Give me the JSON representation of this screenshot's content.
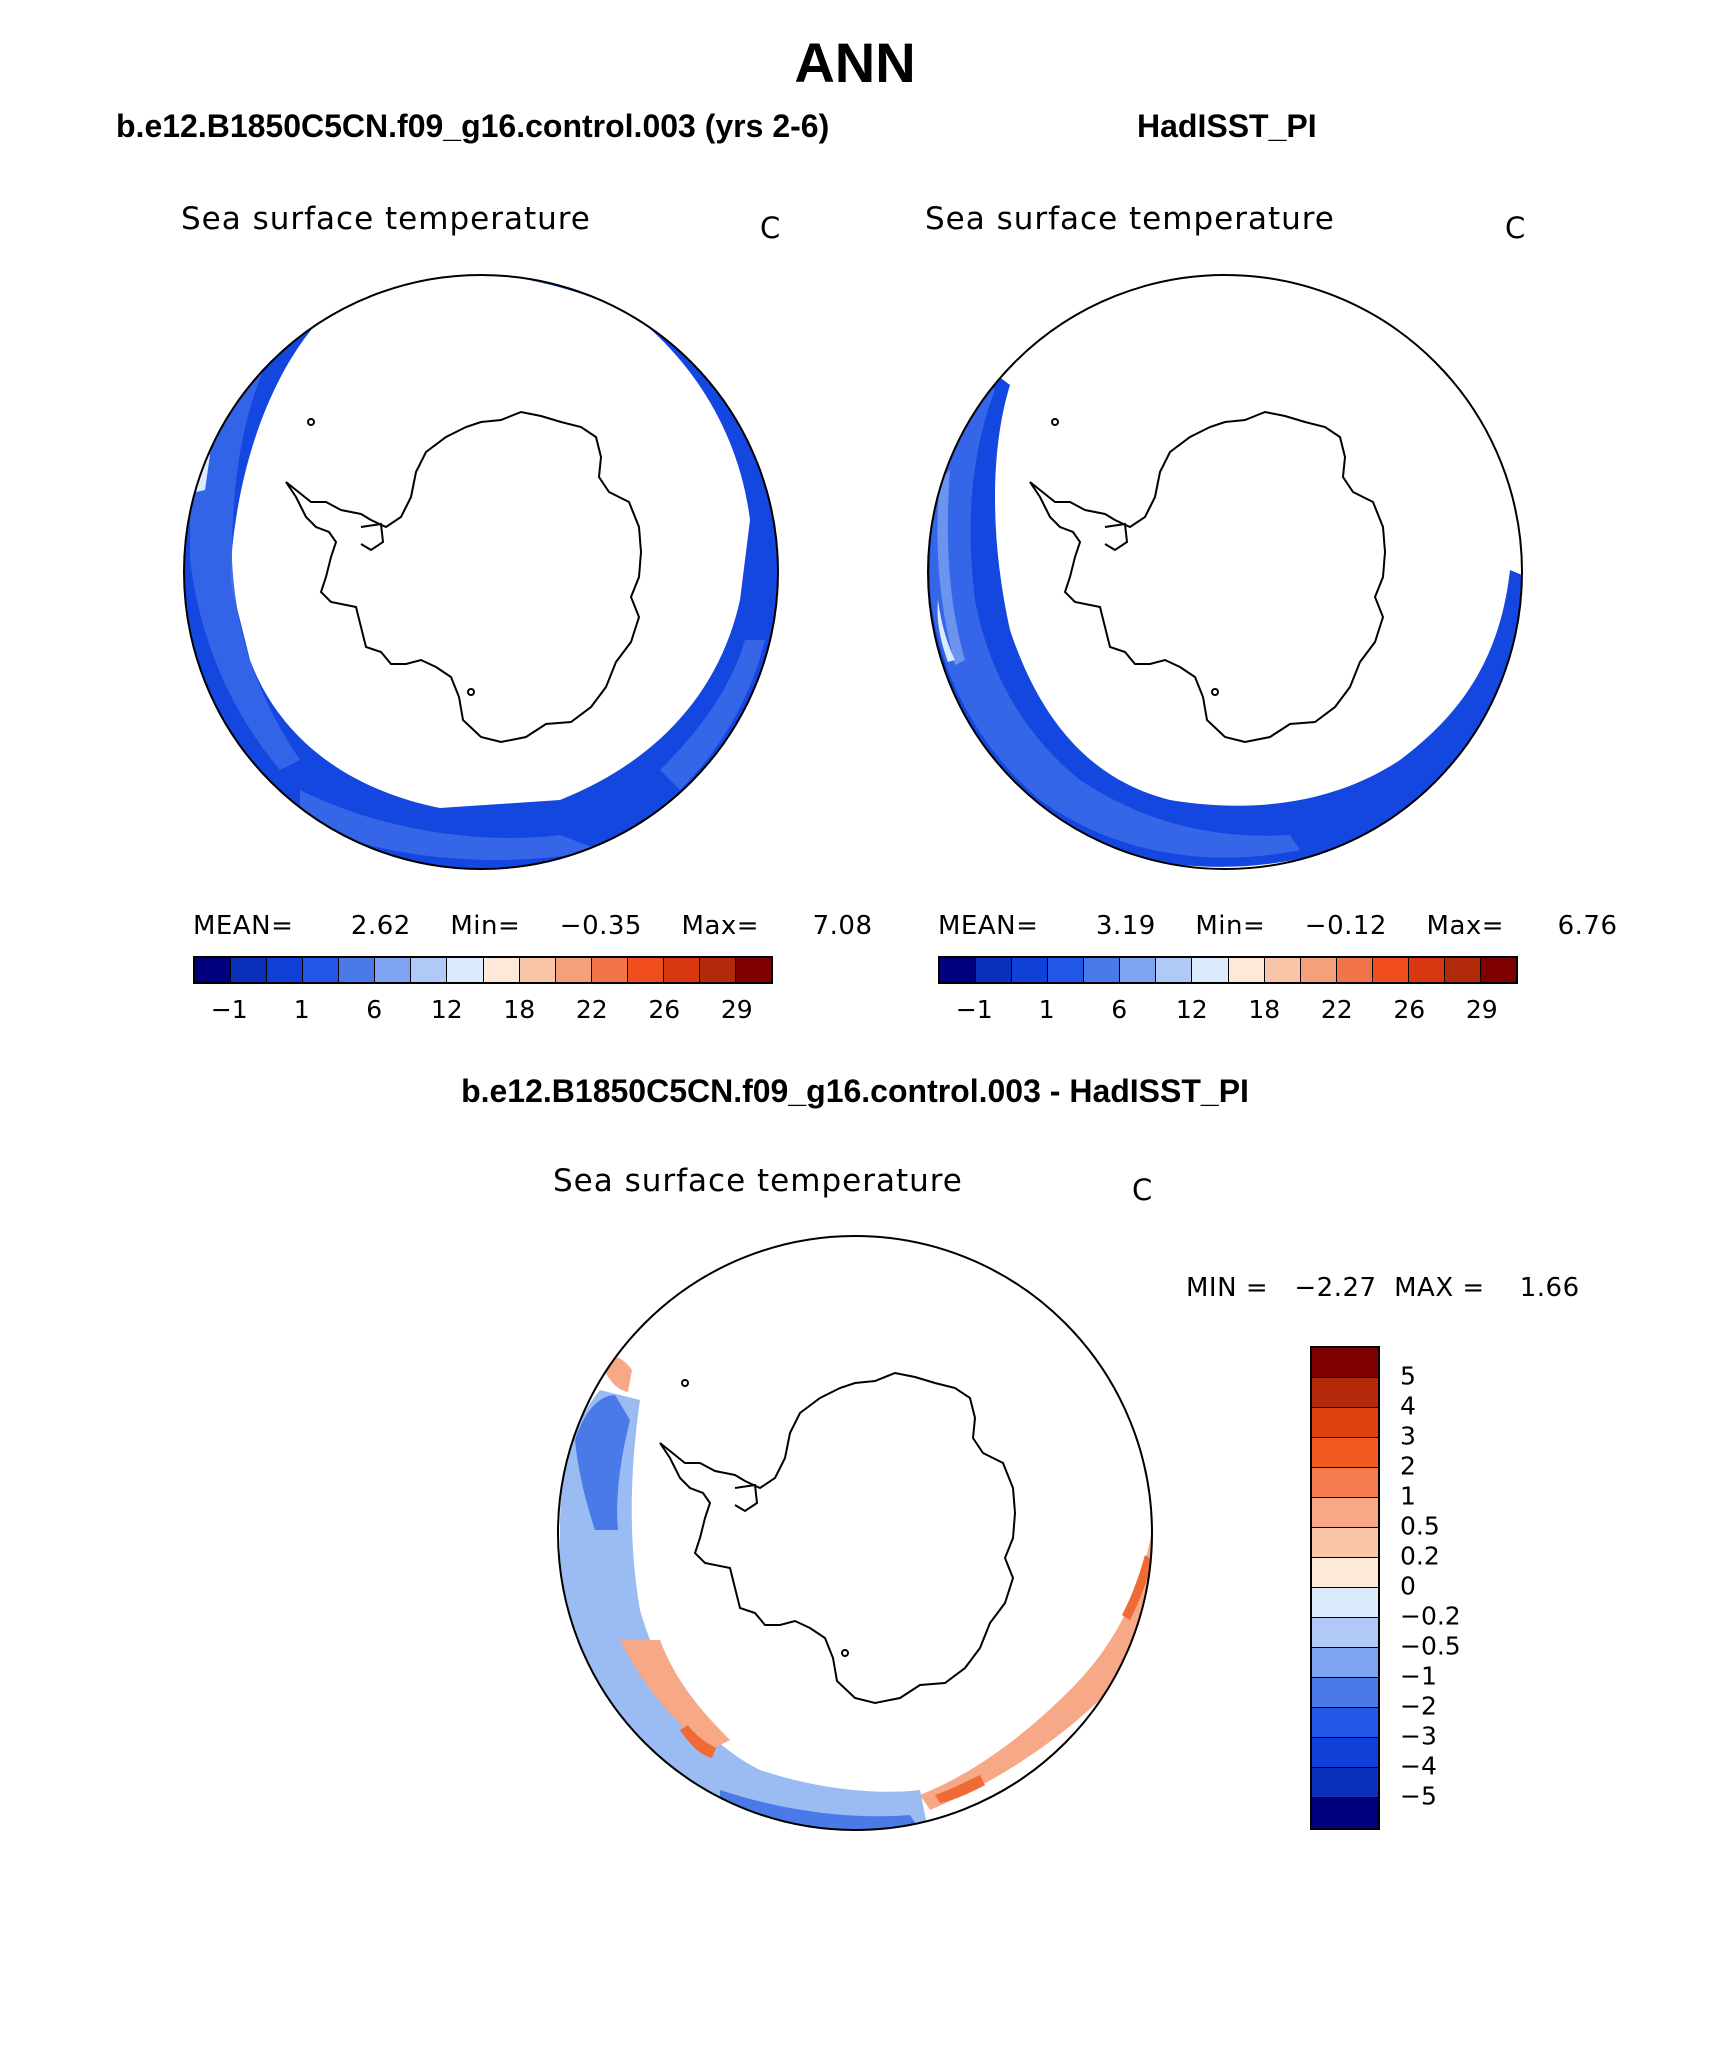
{
  "title": "ANN",
  "left_case_title": "b.e12.B1850C5CN.f09_g16.control.003 (yrs 2-6)",
  "right_case_title": "HadISST_PI",
  "diff_title": "b.e12.B1850C5CN.f09_g16.control.003 - HadISST_PI",
  "panels": [
    {
      "var_title": "Sea surface temperature",
      "units": "C",
      "mean_label": "MEAN=",
      "mean": "2.62",
      "min_label": "Min=",
      "min": "−0.35",
      "max_label": "Max=",
      "max": "7.08"
    },
    {
      "var_title": "Sea surface temperature",
      "units": "C",
      "mean_label": "MEAN=",
      "mean": "3.19",
      "min_label": "Min=",
      "min": "−0.12",
      "max_label": "Max=",
      "max": "6.76"
    },
    {
      "var_title": "Sea surface temperature",
      "units": "C",
      "range_text": "MIN =   −2.27  MAX =    1.66"
    }
  ],
  "sst_colorbar": {
    "colors": [
      "#00007f",
      "#0a2fb8",
      "#1040d8",
      "#2357e8",
      "#4a7ae8",
      "#7ea3f2",
      "#b1c9f6",
      "#dcebfb",
      "#fde9d9",
      "#f9c5a8",
      "#f4a07a",
      "#f2744b",
      "#f04e1e",
      "#d83810",
      "#b32a0a",
      "#7f0000"
    ],
    "tick_labels": [
      "−1",
      "1",
      "6",
      "12",
      "18",
      "22",
      "26",
      "29"
    ]
  },
  "diff_colorbar": {
    "colors": [
      "#7f0000",
      "#b32a0a",
      "#e0400c",
      "#f25a22",
      "#f57c4e",
      "#f6a887",
      "#f9c5a8",
      "#fde9d9",
      "#dcebfb",
      "#b1c9f6",
      "#7ea3f2",
      "#4a7ae8",
      "#2357e8",
      "#1040d8",
      "#0a2fb8",
      "#00007f"
    ],
    "levels": [
      "5",
      "4",
      "3",
      "2",
      "1",
      "0.5",
      "0.2",
      "0",
      "−0.2",
      "−0.5",
      "−1",
      "−2",
      "−3",
      "−4",
      "−5"
    ]
  },
  "colors": {
    "ocean_dark_blue": "#1447e0",
    "ocean_mid_blue": "#3566e8",
    "diff_light_blue": "#9bbbf3",
    "diff_warm": "#f6a887",
    "diff_hot": "#f06a36"
  }
}
